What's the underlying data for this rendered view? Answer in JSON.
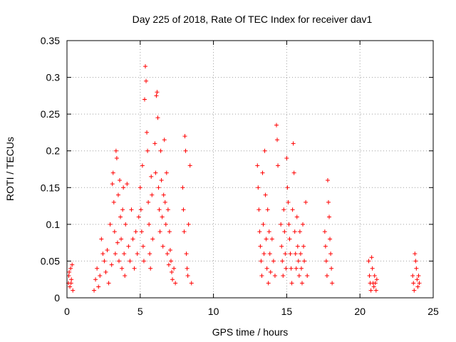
{
  "chart_data": {
    "type": "scatter",
    "title": "Day 225 of 2018, Rate Of TEC Index for receiver dav1",
    "xlabel": "GPS time / hours",
    "ylabel": "ROTI / TECUs",
    "xlim": [
      0,
      25
    ],
    "ylim": [
      0,
      0.35
    ],
    "xticks": [
      "0",
      "5",
      "10",
      "15",
      "20",
      "25"
    ],
    "yticks": [
      "0",
      "0.05",
      "0.1",
      "0.15",
      "0.2",
      "0.25",
      "0.3",
      "0.35"
    ],
    "grid": true,
    "marker": "plus",
    "color": "#ff0000",
    "series": [
      {
        "points": [
          [
            0.1,
            0.02
          ],
          [
            0.15,
            0.035
          ],
          [
            0.2,
            0.015
          ],
          [
            0.25,
            0.04
          ],
          [
            0.3,
            0.025
          ],
          [
            0.35,
            0.045
          ],
          [
            0.4,
            0.01
          ],
          [
            0.12,
            0.03
          ],
          [
            0.28,
            0.02
          ],
          [
            1.85,
            0.01
          ],
          [
            1.95,
            0.025
          ],
          [
            2.05,
            0.04
          ],
          [
            2.15,
            0.015
          ],
          [
            2.25,
            0.03
          ],
          [
            2.35,
            0.08
          ],
          [
            2.45,
            0.06
          ],
          [
            2.55,
            0.05
          ],
          [
            2.65,
            0.035
          ],
          [
            2.75,
            0.065
          ],
          [
            2.85,
            0.02
          ],
          [
            2.95,
            0.1
          ],
          [
            3.05,
            0.045
          ],
          [
            3.1,
            0.155
          ],
          [
            3.15,
            0.17
          ],
          [
            3.2,
            0.13
          ],
          [
            3.25,
            0.09
          ],
          [
            3.3,
            0.06
          ],
          [
            3.35,
            0.2
          ],
          [
            3.4,
            0.19
          ],
          [
            3.45,
            0.075
          ],
          [
            3.5,
            0.14
          ],
          [
            3.55,
            0.05
          ],
          [
            3.6,
            0.16
          ],
          [
            3.65,
            0.11
          ],
          [
            3.7,
            0.08
          ],
          [
            3.75,
            0.04
          ],
          [
            3.8,
            0.12
          ],
          [
            3.85,
            0.15
          ],
          [
            3.9,
            0.06
          ],
          [
            3.95,
            0.03
          ],
          [
            4.0,
            0.1
          ],
          [
            4.1,
            0.155
          ],
          [
            4.2,
            0.07
          ],
          [
            4.3,
            0.05
          ],
          [
            4.4,
            0.12
          ],
          [
            4.5,
            0.08
          ],
          [
            4.6,
            0.04
          ],
          [
            4.7,
            0.09
          ],
          [
            4.8,
            0.06
          ],
          [
            4.9,
            0.11
          ],
          [
            5.0,
            0.15
          ],
          [
            5.05,
            0.12
          ],
          [
            5.1,
            0.09
          ],
          [
            5.15,
            0.18
          ],
          [
            5.2,
            0.07
          ],
          [
            5.25,
            0.05
          ],
          [
            5.3,
            0.27
          ],
          [
            5.35,
            0.315
          ],
          [
            5.4,
            0.295
          ],
          [
            5.45,
            0.225
          ],
          [
            5.5,
            0.2
          ],
          [
            5.55,
            0.13
          ],
          [
            5.6,
            0.1
          ],
          [
            5.65,
            0.06
          ],
          [
            5.7,
            0.04
          ],
          [
            5.75,
            0.165
          ],
          [
            5.8,
            0.14
          ],
          [
            5.85,
            0.08
          ],
          [
            6.0,
            0.21
          ],
          [
            6.05,
            0.17
          ],
          [
            6.1,
            0.275
          ],
          [
            6.15,
            0.28
          ],
          [
            6.2,
            0.245
          ],
          [
            6.25,
            0.15
          ],
          [
            6.3,
            0.12
          ],
          [
            6.35,
            0.09
          ],
          [
            6.4,
            0.2
          ],
          [
            6.45,
            0.16
          ],
          [
            6.5,
            0.11
          ],
          [
            6.55,
            0.07
          ],
          [
            6.6,
            0.14
          ],
          [
            6.65,
            0.215
          ],
          [
            6.7,
            0.13
          ],
          [
            6.75,
            0.1
          ],
          [
            6.8,
            0.17
          ],
          [
            6.85,
            0.06
          ],
          [
            6.9,
            0.12
          ],
          [
            6.95,
            0.045
          ],
          [
            7.0,
            0.09
          ],
          [
            7.05,
            0.065
          ],
          [
            7.1,
            0.05
          ],
          [
            7.15,
            0.035
          ],
          [
            7.2,
            0.025
          ],
          [
            7.3,
            0.04
          ],
          [
            7.4,
            0.02
          ],
          [
            7.9,
            0.15
          ],
          [
            7.95,
            0.12
          ],
          [
            8.0,
            0.09
          ],
          [
            8.05,
            0.22
          ],
          [
            8.1,
            0.2
          ],
          [
            8.15,
            0.06
          ],
          [
            8.2,
            0.04
          ],
          [
            8.25,
            0.03
          ],
          [
            8.3,
            0.1
          ],
          [
            8.4,
            0.18
          ],
          [
            8.5,
            0.02
          ],
          [
            13.0,
            0.18
          ],
          [
            13.05,
            0.15
          ],
          [
            13.1,
            0.12
          ],
          [
            13.15,
            0.09
          ],
          [
            13.2,
            0.07
          ],
          [
            13.25,
            0.05
          ],
          [
            13.3,
            0.03
          ],
          [
            13.35,
            0.17
          ],
          [
            13.4,
            0.1
          ],
          [
            13.45,
            0.06
          ],
          [
            13.5,
            0.2
          ],
          [
            13.55,
            0.14
          ],
          [
            13.6,
            0.08
          ],
          [
            13.65,
            0.04
          ],
          [
            13.7,
            0.12
          ],
          [
            13.75,
            0.02
          ],
          [
            13.8,
            0.09
          ],
          [
            13.85,
            0.06
          ],
          [
            13.9,
            0.035
          ],
          [
            14.0,
            0.08
          ],
          [
            14.1,
            0.05
          ],
          [
            14.2,
            0.03
          ],
          [
            14.3,
            0.235
          ],
          [
            14.35,
            0.215
          ],
          [
            14.4,
            0.18
          ],
          [
            14.6,
            0.1
          ],
          [
            14.65,
            0.07
          ],
          [
            14.7,
            0.05
          ],
          [
            14.75,
            0.03
          ],
          [
            14.8,
            0.12
          ],
          [
            14.85,
            0.09
          ],
          [
            14.9,
            0.06
          ],
          [
            14.95,
            0.04
          ],
          [
            15.0,
            0.19
          ],
          [
            15.05,
            0.15
          ],
          [
            15.1,
            0.13
          ],
          [
            15.15,
            0.1
          ],
          [
            15.2,
            0.08
          ],
          [
            15.25,
            0.06
          ],
          [
            15.3,
            0.04
          ],
          [
            15.35,
            0.02
          ],
          [
            15.4,
            0.12
          ],
          [
            15.45,
            0.21
          ],
          [
            15.5,
            0.17
          ],
          [
            15.55,
            0.09
          ],
          [
            15.6,
            0.06
          ],
          [
            15.65,
            0.04
          ],
          [
            15.7,
            0.11
          ],
          [
            15.75,
            0.07
          ],
          [
            15.8,
            0.05
          ],
          [
            15.85,
            0.03
          ],
          [
            15.9,
            0.09
          ],
          [
            15.95,
            0.06
          ],
          [
            16.0,
            0.04
          ],
          [
            16.05,
            0.02
          ],
          [
            16.1,
            0.1
          ],
          [
            16.15,
            0.07
          ],
          [
            16.2,
            0.05
          ],
          [
            16.3,
            0.13
          ],
          [
            16.4,
            0.03
          ],
          [
            17.6,
            0.09
          ],
          [
            17.65,
            0.07
          ],
          [
            17.7,
            0.05
          ],
          [
            17.75,
            0.03
          ],
          [
            17.8,
            0.16
          ],
          [
            17.85,
            0.13
          ],
          [
            17.9,
            0.11
          ],
          [
            17.95,
            0.08
          ],
          [
            18.0,
            0.06
          ],
          [
            18.05,
            0.04
          ],
          [
            18.1,
            0.02
          ],
          [
            20.6,
            0.05
          ],
          [
            20.65,
            0.03
          ],
          [
            20.7,
            0.02
          ],
          [
            20.75,
            0.01
          ],
          [
            20.8,
            0.055
          ],
          [
            20.85,
            0.04
          ],
          [
            20.9,
            0.02
          ],
          [
            20.95,
            0.015
          ],
          [
            21.0,
            0.03
          ],
          [
            21.05,
            0.02
          ],
          [
            21.1,
            0.01
          ],
          [
            21.15,
            0.025
          ],
          [
            23.6,
            0.03
          ],
          [
            23.65,
            0.02
          ],
          [
            23.7,
            0.01
          ],
          [
            23.75,
            0.06
          ],
          [
            23.8,
            0.05
          ],
          [
            23.85,
            0.04
          ],
          [
            23.9,
            0.025
          ],
          [
            23.95,
            0.015
          ],
          [
            24.0,
            0.03
          ],
          [
            24.05,
            0.02
          ]
        ]
      }
    ]
  }
}
